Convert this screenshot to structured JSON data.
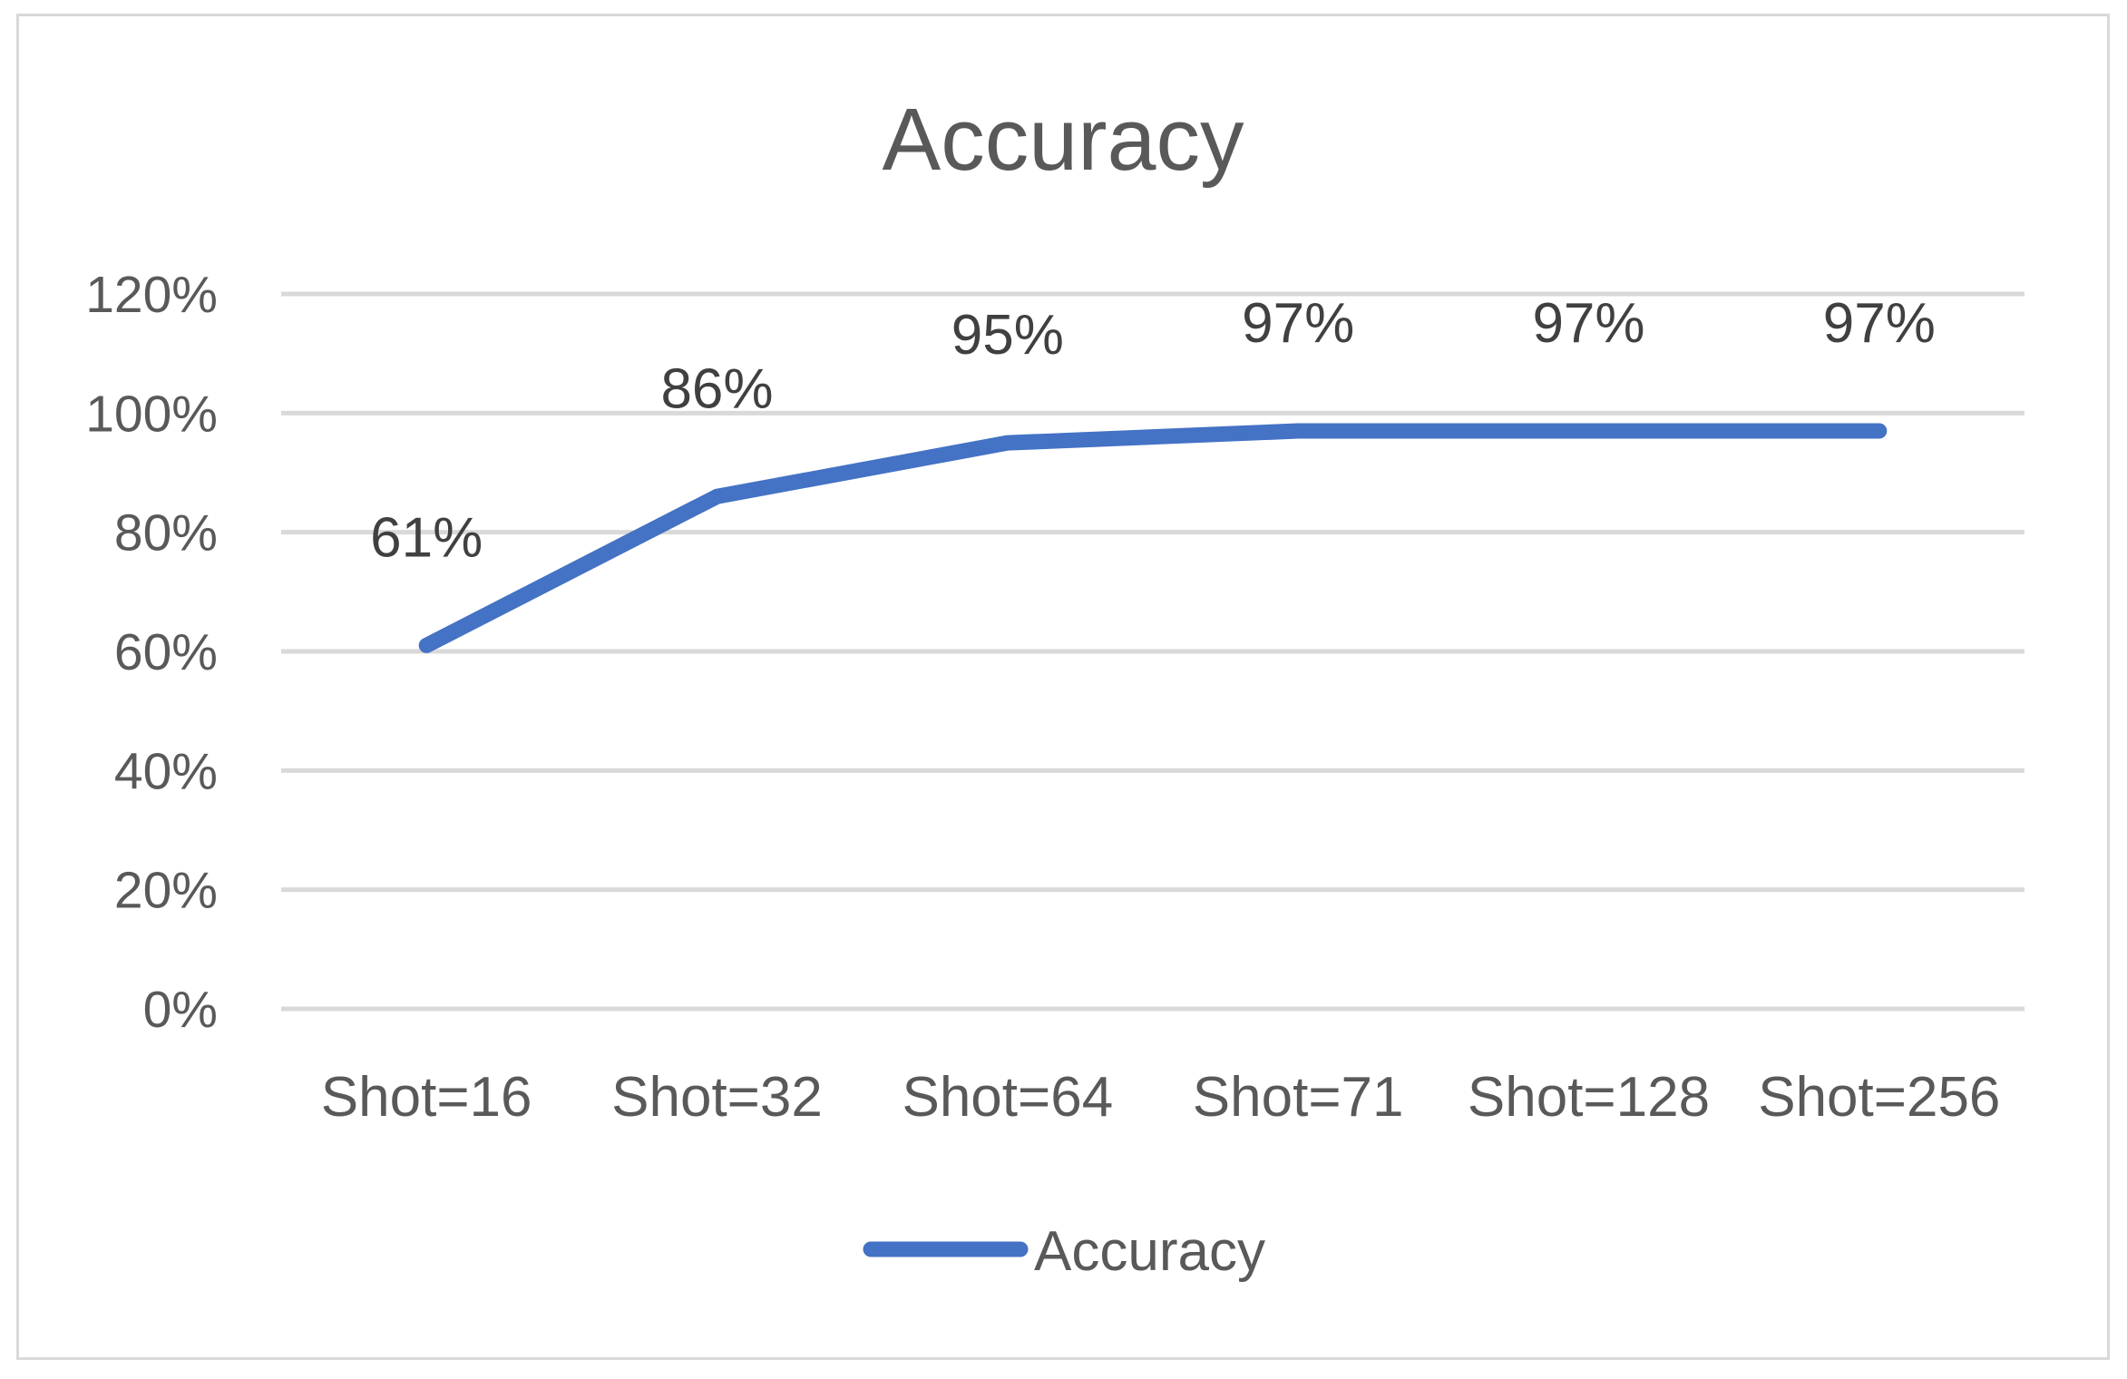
{
  "chart_data": {
    "type": "line",
    "title": "Accuracy",
    "xlabel": "",
    "ylabel": "",
    "categories": [
      "Shot=16",
      "Shot=32",
      "Shot=64",
      "Shot=71",
      "Shot=128",
      "Shot=256"
    ],
    "series": [
      {
        "name": "Accuracy",
        "values": [
          61,
          86,
          95,
          97,
          97,
          97
        ],
        "data_labels": [
          "61%",
          "86%",
          "95%",
          "97%",
          "97%",
          "97%"
        ],
        "color": "#4472c4"
      }
    ],
    "ylim": [
      0,
      120
    ],
    "y_ticks": [
      0,
      20,
      40,
      60,
      80,
      100,
      120
    ],
    "y_tick_labels": [
      "0%",
      "20%",
      "40%",
      "60%",
      "80%",
      "100%",
      "120%"
    ],
    "grid": true,
    "legend": "bottom"
  }
}
